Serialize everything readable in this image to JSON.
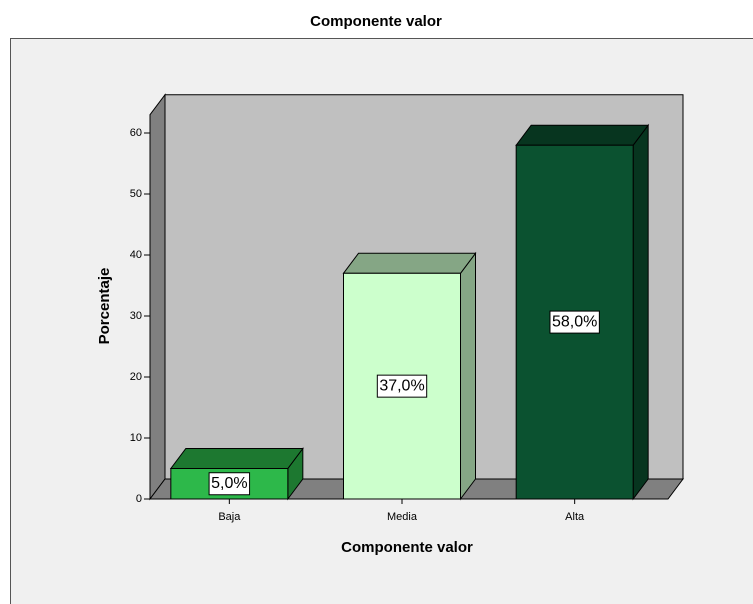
{
  "chart_data": {
    "type": "bar3d",
    "title": "Componente valor",
    "xlabel": "Componente valor",
    "ylabel": "Porcentaje",
    "categories": [
      "Baja",
      "Media",
      "Alta"
    ],
    "values": [
      5,
      37,
      58
    ],
    "value_labels": [
      "5,0%",
      "37,0%",
      "58,0%"
    ],
    "colors": [
      "#2db84a",
      "#ccffcc",
      "#0b5230"
    ],
    "ylim": [
      0,
      63
    ],
    "yticks": [
      0,
      10,
      20,
      30,
      40,
      50,
      60
    ]
  }
}
